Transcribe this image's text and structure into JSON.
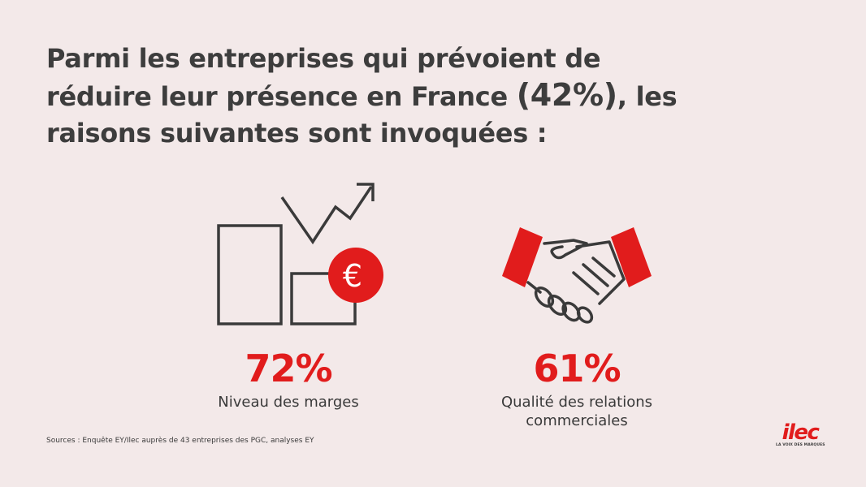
{
  "header": {
    "title_part1": "Parmi les entreprises qui prévoient de réduire leur présence en France ",
    "title_highlight": "(42%)",
    "title_part2": ", les raisons suivantes sont invoquées :"
  },
  "chart_data": {
    "type": "table",
    "title": "Parmi les entreprises qui prévoient de réduire leur présence en France (42%), les raisons suivantes sont invoquées :",
    "categories": [
      "Niveau des marges",
      "Qualité des relations commerciales"
    ],
    "values": [
      72,
      61
    ],
    "value_labels": [
      "72%",
      "61%"
    ],
    "icons": [
      "bar-chart-euro-icon",
      "handshake-icon"
    ]
  },
  "footer": {
    "source": "Sources : Enquête EY/Ilec auprès de 43 entreprises des PGC, analyses EY"
  },
  "logo": {
    "name": "ilec",
    "tagline": "LA VOIX DES MARQUES"
  },
  "colors": {
    "background": "#f3e9e9",
    "accent": "#e11c1c",
    "text": "#3d3d3d"
  }
}
